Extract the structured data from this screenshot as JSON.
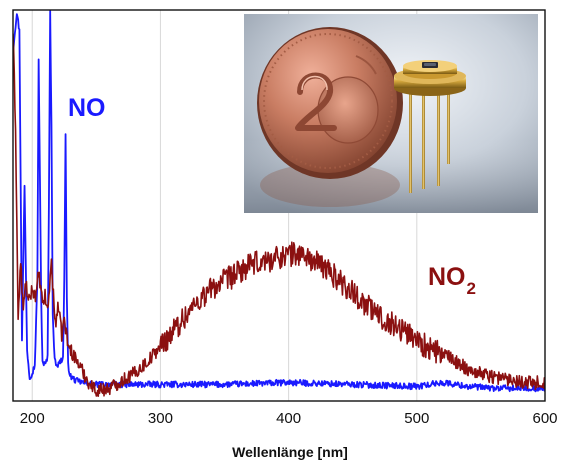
{
  "chart_data": {
    "type": "line",
    "title": "",
    "xlabel": "Wellenlänge [nm]",
    "ylabel": "",
    "xlim": [
      185,
      600
    ],
    "ylim": [
      0,
      1
    ],
    "xticks": [
      200,
      300,
      400,
      500,
      600
    ],
    "grid": "vertical",
    "legend": "none",
    "series": [
      {
        "name": "NO",
        "name_subscript": "",
        "color": "#1a1aff",
        "noise": 0.008,
        "x": [
          185,
          188,
          190,
          192,
          194,
          196,
          198,
          200,
          202,
          204,
          205,
          207,
          208,
          210,
          212,
          213,
          214,
          215,
          216,
          217,
          218,
          220,
          222,
          224,
          225,
          226,
          227,
          228,
          230,
          234,
          240,
          250,
          270,
          300,
          350,
          400,
          450,
          500,
          520,
          540,
          560,
          580,
          600
        ],
        "y": [
          0.9,
          1.0,
          0.95,
          0.15,
          0.55,
          0.12,
          0.05,
          0.06,
          0.08,
          0.3,
          0.88,
          0.25,
          0.09,
          0.08,
          0.1,
          0.5,
          1.0,
          0.7,
          0.22,
          0.12,
          0.09,
          0.08,
          0.09,
          0.1,
          0.3,
          0.68,
          0.25,
          0.08,
          0.05,
          0.04,
          0.035,
          0.03,
          0.03,
          0.03,
          0.03,
          0.035,
          0.03,
          0.025,
          0.035,
          0.025,
          0.02,
          0.02,
          0.02
        ]
      },
      {
        "name": "NO",
        "name_subscript": "2",
        "color": "#8b1010",
        "noise": 0.018,
        "x": [
          185,
          187,
          189,
          191,
          193,
          195,
          197,
          200,
          203,
          205,
          208,
          210,
          212,
          215,
          218,
          220,
          223,
          225,
          228,
          230,
          235,
          240,
          245,
          250,
          260,
          270,
          280,
          290,
          300,
          310,
          320,
          330,
          340,
          350,
          360,
          370,
          380,
          390,
          400,
          410,
          420,
          430,
          440,
          450,
          460,
          470,
          480,
          490,
          500,
          510,
          520,
          530,
          540,
          550,
          560,
          570,
          580,
          590,
          600
        ],
        "y": [
          0.95,
          0.7,
          0.2,
          0.35,
          0.22,
          0.3,
          0.24,
          0.28,
          0.26,
          0.32,
          0.24,
          0.26,
          0.22,
          0.35,
          0.18,
          0.24,
          0.16,
          0.2,
          0.13,
          0.12,
          0.09,
          0.06,
          0.03,
          0.015,
          0.02,
          0.04,
          0.06,
          0.09,
          0.13,
          0.17,
          0.21,
          0.25,
          0.28,
          0.3,
          0.32,
          0.34,
          0.35,
          0.36,
          0.37,
          0.37,
          0.35,
          0.33,
          0.3,
          0.27,
          0.24,
          0.21,
          0.19,
          0.17,
          0.15,
          0.12,
          0.11,
          0.09,
          0.07,
          0.06,
          0.05,
          0.045,
          0.04,
          0.035,
          0.035
        ]
      }
    ]
  }
}
